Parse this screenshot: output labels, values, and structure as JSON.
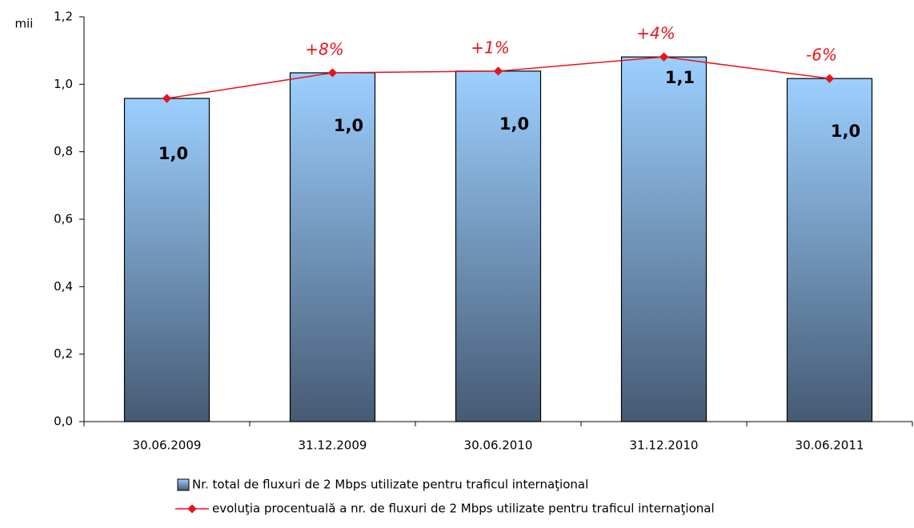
{
  "chart_data": {
    "type": "bar",
    "unit_label": "mii",
    "categories": [
      "30.06.2009",
      "31.12.2009",
      "30.06.2010",
      "31.12.2010",
      "30.06.2011"
    ],
    "series": [
      {
        "name": "Nr. total de fluxuri de 2 Mbps utilizate pentru traficul internaţional",
        "type": "bar",
        "color": "#9ccfff",
        "values": [
          0.958,
          1.034,
          1.039,
          1.081,
          1.017
        ],
        "value_labels": [
          "1,0",
          "1,0",
          "1,0",
          "1,1",
          "1,0"
        ]
      },
      {
        "name": "evoluţia procentuală a nr. de fluxuri de 2 Mbps utilizate pentru traficul internaţional",
        "type": "line",
        "color": "#e8141a",
        "values": [
          0.958,
          1.034,
          1.039,
          1.081,
          1.017
        ]
      }
    ],
    "annotations": [
      {
        "x": "31.12.2009",
        "text": "+8%"
      },
      {
        "x": "30.06.2010",
        "text": "+1%"
      },
      {
        "x": "31.12.2010",
        "text": "+4%"
      },
      {
        "x": "30.06.2011",
        "text": "-6%"
      }
    ],
    "ylim": [
      0,
      1.2
    ],
    "yticks": [
      {
        "value": 0,
        "label": "0,0"
      },
      {
        "value": 0.2,
        "label": "0,2"
      },
      {
        "value": 0.4,
        "label": "0,4"
      },
      {
        "value": 0.6,
        "label": "0,6"
      },
      {
        "value": 0.8,
        "label": "0,8"
      },
      {
        "value": 1,
        "label": "1,0"
      },
      {
        "value": 1.2,
        "label": "1,2"
      }
    ]
  }
}
